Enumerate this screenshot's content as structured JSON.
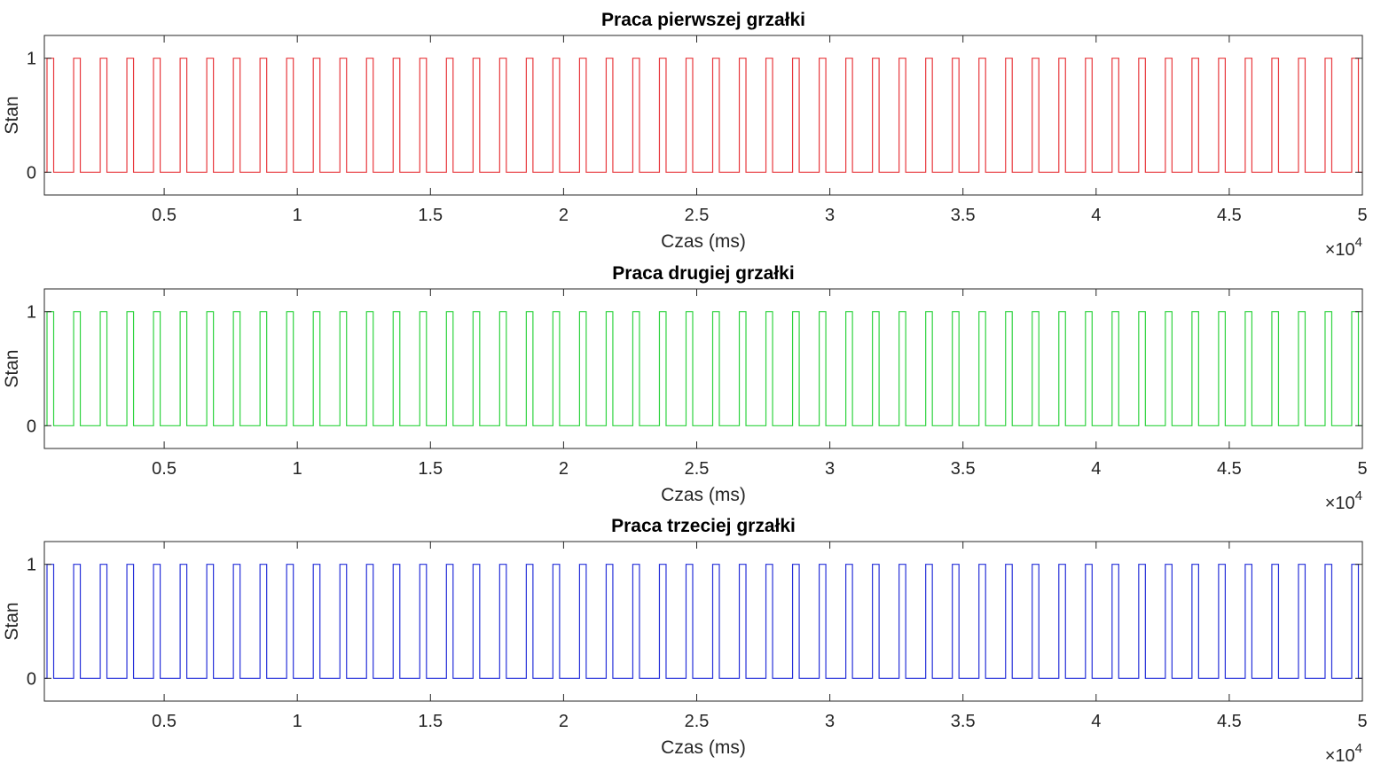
{
  "chart_data": [
    {
      "type": "line",
      "title": "Praca pierwszej grzałki",
      "xlabel": "Czas (ms)",
      "ylabel": "Stan",
      "x_multiplier": "×10",
      "x_multiplier_exp": "4",
      "xlim": [
        500,
        50000
      ],
      "ylim": [
        -0.2,
        1.2
      ],
      "xticks": [
        5000,
        10000,
        15000,
        20000,
        25000,
        30000,
        35000,
        40000,
        45000,
        50000
      ],
      "xtick_labels": [
        "0.5",
        "1",
        "1.5",
        "2",
        "2.5",
        "3",
        "3.5",
        "4",
        "4.5",
        "5"
      ],
      "yticks": [
        0,
        1
      ],
      "ytick_labels": [
        "0",
        "1"
      ],
      "grid": false,
      "color": "#e8383d",
      "series": [
        {
          "signal": "square-wave",
          "period_ms": 1000,
          "on_start_ms": 600,
          "on_end_ms": 850,
          "low": 0,
          "high": 1,
          "x_start_ms": 500,
          "x_end_ms": 50000
        }
      ]
    },
    {
      "type": "line",
      "title": "Praca drugiej grzałki",
      "xlabel": "Czas (ms)",
      "ylabel": "Stan",
      "x_multiplier": "×10",
      "x_multiplier_exp": "4",
      "xlim": [
        500,
        50000
      ],
      "ylim": [
        -0.2,
        1.2
      ],
      "xticks": [
        5000,
        10000,
        15000,
        20000,
        25000,
        30000,
        35000,
        40000,
        45000,
        50000
      ],
      "xtick_labels": [
        "0.5",
        "1",
        "1.5",
        "2",
        "2.5",
        "3",
        "3.5",
        "4",
        "4.5",
        "5"
      ],
      "yticks": [
        0,
        1
      ],
      "ytick_labels": [
        "0",
        "1"
      ],
      "grid": false,
      "color": "#2fd33f",
      "series": [
        {
          "signal": "square-wave",
          "period_ms": 1000,
          "on_start_ms": 600,
          "on_end_ms": 850,
          "low": 0,
          "high": 1,
          "x_start_ms": 500,
          "x_end_ms": 50000
        }
      ]
    },
    {
      "type": "line",
      "title": "Praca trzeciej grzałki",
      "xlabel": "Czas (ms)",
      "ylabel": "Stan",
      "x_multiplier": "×10",
      "x_multiplier_exp": "4",
      "xlim": [
        500,
        50000
      ],
      "ylim": [
        -0.2,
        1.2
      ],
      "xticks": [
        5000,
        10000,
        15000,
        20000,
        25000,
        30000,
        35000,
        40000,
        45000,
        50000
      ],
      "xtick_labels": [
        "0.5",
        "1",
        "1.5",
        "2",
        "2.5",
        "3",
        "3.5",
        "4",
        "4.5",
        "5"
      ],
      "yticks": [
        0,
        1
      ],
      "ytick_labels": [
        "0",
        "1"
      ],
      "grid": false,
      "color": "#2630d9",
      "series": [
        {
          "signal": "square-wave",
          "period_ms": 1000,
          "on_start_ms": 600,
          "on_end_ms": 850,
          "low": 0,
          "high": 1,
          "x_start_ms": 500,
          "x_end_ms": 50000
        }
      ]
    }
  ]
}
